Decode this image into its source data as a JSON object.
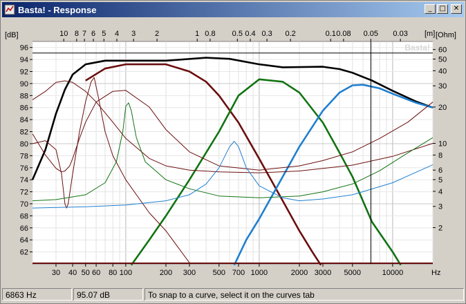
{
  "window": {
    "title": "Basta! - Response"
  },
  "title_buttons": {
    "minimize": "_",
    "maximize": "□",
    "close": "✕"
  },
  "icons": {
    "app": "speaker-app-icon"
  },
  "chart_data": {
    "type": "line",
    "watermark": "Basta!",
    "x_axis": {
      "scale": "log",
      "unit": "Hz",
      "range": [
        20,
        20000
      ],
      "tick_labels": [
        "30",
        "40",
        "50",
        "60",
        "80",
        "100",
        "200",
        "300",
        "500",
        "700",
        "1000",
        "2000",
        "3000",
        "5000",
        "10000"
      ]
    },
    "top_axis": {
      "unit": "[m]",
      "tick_labels": [
        "10",
        "8",
        "7",
        "6",
        "5",
        "4",
        "3",
        "2",
        "1",
        "0.8",
        "0.5",
        "0.4",
        "0.3",
        "0.2",
        "0.1",
        "0.08",
        "0.05",
        "0.03"
      ]
    },
    "y_left": {
      "unit": "[dB]",
      "range": [
        60,
        97
      ],
      "tick_labels": [
        "96",
        "94",
        "92",
        "90",
        "88",
        "86",
        "84",
        "82",
        "80",
        "78",
        "76",
        "74",
        "72",
        "70",
        "68",
        "66",
        "64",
        "62"
      ]
    },
    "y_right": {
      "unit": "[Ohm]",
      "scale": "log",
      "range": [
        1,
        70
      ],
      "tick_labels": [
        "60",
        "50",
        "40",
        "30",
        "20",
        "10",
        "8",
        "6",
        "5",
        "4",
        "3",
        "2"
      ]
    },
    "cursor": {
      "x": 6863,
      "y": 95.07
    },
    "series": [
      {
        "color": "#000000",
        "width": 2.6,
        "axis": "left",
        "points": [
          [
            20,
            74
          ],
          [
            25,
            79
          ],
          [
            30,
            85
          ],
          [
            35,
            89
          ],
          [
            40,
            91.5
          ],
          [
            50,
            93.2
          ],
          [
            70,
            93.8
          ],
          [
            100,
            93.8
          ],
          [
            200,
            93.8
          ],
          [
            400,
            94.3
          ],
          [
            600,
            94.1
          ],
          [
            1000,
            93.2
          ],
          [
            1500,
            92.7
          ],
          [
            3000,
            92.8
          ],
          [
            4000,
            92.4
          ],
          [
            5000,
            91.8
          ],
          [
            7000,
            90.5
          ],
          [
            10000,
            88.8
          ],
          [
            15000,
            87.0
          ],
          [
            20000,
            86.0
          ]
        ]
      },
      {
        "color": "#6b0e0e",
        "width": 2.6,
        "axis": "left",
        "points": [
          [
            50,
            90.5
          ],
          [
            70,
            92.5
          ],
          [
            100,
            93.2
          ],
          [
            200,
            93.2
          ],
          [
            300,
            92.0
          ],
          [
            400,
            90.3
          ],
          [
            500,
            88.0
          ],
          [
            700,
            83.5
          ],
          [
            1000,
            77.5
          ],
          [
            1500,
            70.5
          ],
          [
            2000,
            65.5
          ],
          [
            2500,
            62.0
          ],
          [
            2900,
            59.8
          ]
        ]
      },
      {
        "color": "#127312",
        "width": 2.6,
        "axis": "left",
        "points": [
          [
            110,
            59.8
          ],
          [
            150,
            64
          ],
          [
            200,
            68
          ],
          [
            300,
            74
          ],
          [
            500,
            82
          ],
          [
            700,
            88
          ],
          [
            1000,
            90.7
          ],
          [
            1500,
            90.3
          ],
          [
            2000,
            88.5
          ],
          [
            3000,
            83.5
          ],
          [
            4000,
            78.5
          ],
          [
            5000,
            74.5
          ],
          [
            7000,
            67.0
          ],
          [
            10000,
            62.0
          ],
          [
            11500,
            59.8
          ]
        ]
      },
      {
        "color": "#1e7fd0",
        "width": 2.6,
        "axis": "left",
        "points": [
          [
            650,
            59.8
          ],
          [
            800,
            64
          ],
          [
            1000,
            67.5
          ],
          [
            1500,
            74.5
          ],
          [
            2000,
            79.5
          ],
          [
            3000,
            85.5
          ],
          [
            4000,
            88.5
          ],
          [
            5000,
            89.7
          ],
          [
            6000,
            89.8
          ],
          [
            8000,
            89.2
          ],
          [
            10000,
            88.3
          ],
          [
            15000,
            86.8
          ],
          [
            20000,
            86.0
          ]
        ]
      },
      {
        "color": "#6b0e0e",
        "width": 1,
        "axis": "left",
        "points": [
          [
            20,
            80
          ],
          [
            25,
            80.5
          ],
          [
            30,
            79
          ],
          [
            33,
            75
          ],
          [
            35,
            70
          ],
          [
            36,
            69.3
          ],
          [
            37,
            70
          ],
          [
            40,
            75
          ],
          [
            45,
            82
          ],
          [
            50,
            87
          ],
          [
            55,
            90.3
          ],
          [
            58,
            91.0
          ],
          [
            62,
            88
          ],
          [
            70,
            82
          ],
          [
            80,
            78
          ],
          [
            100,
            74
          ],
          [
            150,
            68.5
          ],
          [
            200,
            65.5
          ],
          [
            300,
            60.2
          ]
        ]
      },
      {
        "color": "#6b0e0e",
        "width": 1,
        "axis": "right",
        "points": [
          [
            20,
            12
          ],
          [
            25,
            8
          ],
          [
            30,
            6.2
          ],
          [
            33,
            5.8
          ],
          [
            35,
            5.9
          ],
          [
            38,
            6.5
          ],
          [
            40,
            7.5
          ],
          [
            45,
            11
          ],
          [
            50,
            15
          ],
          [
            60,
            22
          ],
          [
            80,
            27
          ],
          [
            100,
            27.5
          ],
          [
            150,
            20
          ],
          [
            200,
            13
          ],
          [
            300,
            8.5
          ],
          [
            500,
            6.5
          ],
          [
            1000,
            6.0
          ],
          [
            2000,
            6.5
          ],
          [
            3000,
            7.2
          ],
          [
            5000,
            8.5
          ],
          [
            8000,
            11
          ],
          [
            13000,
            15
          ],
          [
            20000,
            22
          ]
        ]
      },
      {
        "color": "#6b0e0e",
        "width": 1,
        "axis": "right",
        "points": [
          [
            20,
            23
          ],
          [
            25,
            27
          ],
          [
            30,
            32
          ],
          [
            35,
            33
          ],
          [
            40,
            32
          ],
          [
            50,
            27
          ],
          [
            60,
            22
          ],
          [
            80,
            15
          ],
          [
            100,
            11
          ],
          [
            150,
            7.5
          ],
          [
            200,
            6.5
          ],
          [
            300,
            6.0
          ],
          [
            500,
            5.8
          ],
          [
            1000,
            5.7
          ],
          [
            2000,
            5.9
          ],
          [
            5000,
            6.6
          ],
          [
            10000,
            7.8
          ],
          [
            20000,
            10
          ]
        ]
      },
      {
        "color": "#127312",
        "width": 1,
        "axis": "left",
        "points": [
          [
            20,
            70.5
          ],
          [
            30,
            70.7
          ],
          [
            50,
            71.5
          ],
          [
            70,
            73.5
          ],
          [
            85,
            77
          ],
          [
            95,
            82
          ],
          [
            100,
            86.2
          ],
          [
            105,
            86.8
          ],
          [
            110,
            85.5
          ],
          [
            120,
            81
          ],
          [
            140,
            77
          ],
          [
            200,
            74
          ],
          [
            300,
            72.5
          ],
          [
            500,
            71.3
          ],
          [
            1000,
            71.0
          ],
          [
            2000,
            71.3
          ],
          [
            3000,
            72.0
          ],
          [
            5000,
            73.3
          ],
          [
            8000,
            75.5
          ],
          [
            12000,
            78.0
          ],
          [
            20000,
            81.0
          ]
        ]
      },
      {
        "color": "#1e7fd0",
        "width": 1,
        "axis": "left",
        "points": [
          [
            20,
            69.3
          ],
          [
            50,
            69.5
          ],
          [
            100,
            69.8
          ],
          [
            200,
            70.5
          ],
          [
            300,
            71.5
          ],
          [
            400,
            73.3
          ],
          [
            500,
            76
          ],
          [
            600,
            79.5
          ],
          [
            650,
            80.4
          ],
          [
            700,
            79.5
          ],
          [
            800,
            76
          ],
          [
            1000,
            73
          ],
          [
            1500,
            71
          ],
          [
            2000,
            70.5
          ],
          [
            3000,
            70.8
          ],
          [
            5000,
            71.5
          ],
          [
            10000,
            73.5
          ],
          [
            20000,
            76.5
          ]
        ]
      }
    ]
  },
  "status": {
    "frequency": "6863 Hz",
    "level": "95.07 dB",
    "hint": "To snap to a curve, select it on the curves tab"
  }
}
